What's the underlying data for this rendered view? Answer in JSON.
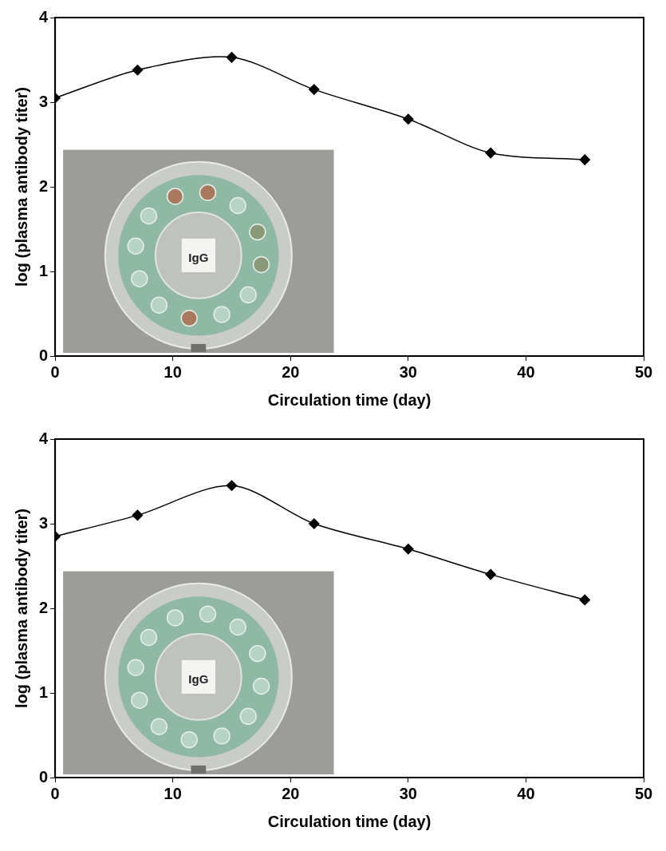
{
  "chart_data": [
    {
      "type": "line",
      "x_label": "Circulation time (day)",
      "y_label": "log (plasma antibody titer)",
      "x": [
        0,
        7,
        15,
        22,
        30,
        37,
        45
      ],
      "values": [
        3.05,
        3.38,
        3.53,
        3.15,
        2.8,
        2.4,
        2.32
      ],
      "color": "#000000",
      "marker": "diamond",
      "line_style": "solid",
      "xlim": [
        0,
        50
      ],
      "xticks": [
        0,
        10,
        20,
        30,
        40,
        50
      ],
      "ylim": [
        0,
        4
      ],
      "yticks": [
        0,
        1,
        2,
        3,
        4
      ],
      "grid": false,
      "annotations": [
        "IgG"
      ]
    },
    {
      "type": "line",
      "x_label": "Circulation time (day)",
      "y_label": "log (plasma antibody titer)",
      "x": [
        0,
        7,
        15,
        22,
        30,
        37,
        45
      ],
      "values": [
        2.85,
        3.1,
        3.45,
        3.0,
        2.7,
        2.4,
        2.1
      ],
      "color": "#000000",
      "marker": "diamond",
      "line_style": "solid",
      "xlim": [
        0,
        50
      ],
      "xticks": [
        0,
        10,
        20,
        30,
        40,
        50
      ],
      "ylim": [
        0,
        4
      ],
      "yticks": [
        0,
        1,
        2,
        3,
        4
      ],
      "grid": false,
      "annotations": [
        "IgG"
      ]
    }
  ]
}
